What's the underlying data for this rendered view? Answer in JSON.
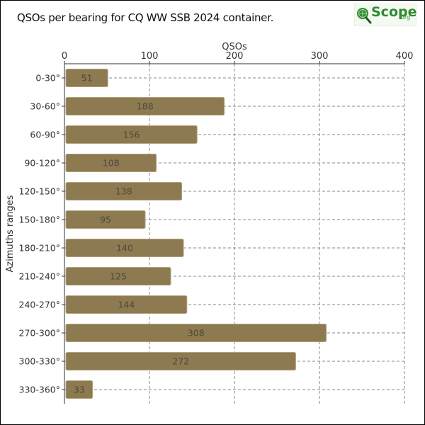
{
  "logo": {
    "text": "Scope",
    "suffix": "org",
    "icon": "magnifier-globe-icon",
    "color": "#2e8b2e"
  },
  "chart_data": {
    "type": "bar",
    "orientation": "horizontal",
    "title": "QSOs per bearing for CQ WW SSB 2024 container.",
    "xlabel": "QSOs",
    "ylabel": "Azimuths ranges",
    "xlim": [
      0,
      400
    ],
    "x_ticks": [
      0,
      100,
      200,
      300,
      400
    ],
    "x_axis_position": "top",
    "grid": true,
    "bar_color": "#8e7a51",
    "categories": [
      "0-30°",
      "30-60°",
      "60-90°",
      "90-120°",
      "120-150°",
      "150-180°",
      "180-210°",
      "210-240°",
      "240-270°",
      "270-300°",
      "300-330°",
      "330-360°"
    ],
    "values": [
      51,
      188,
      156,
      108,
      138,
      95,
      140,
      125,
      144,
      308,
      272,
      33
    ]
  }
}
